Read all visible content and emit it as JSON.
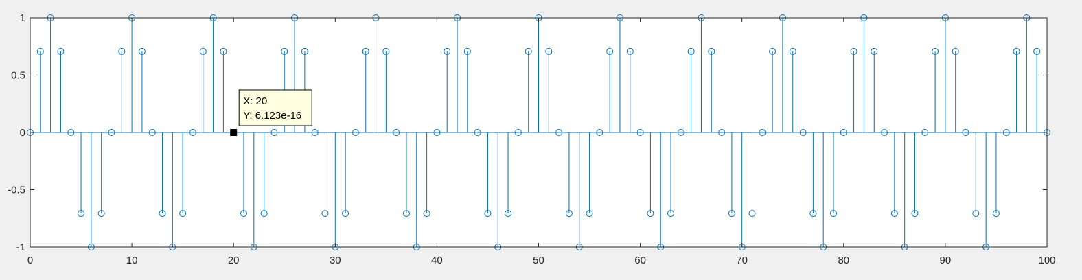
{
  "chart_data": {
    "type": "stem",
    "title": "",
    "xlabel": "",
    "ylabel": "",
    "xlim": [
      0,
      100
    ],
    "ylim": [
      -1,
      1
    ],
    "x_ticks": [
      0,
      10,
      20,
      30,
      40,
      50,
      60,
      70,
      80,
      90,
      100
    ],
    "y_ticks": [
      -1,
      -0.5,
      0,
      0.5,
      1
    ],
    "x_tick_labels": [
      "0",
      "10",
      "20",
      "30",
      "40",
      "50",
      "60",
      "70",
      "80",
      "90",
      "100"
    ],
    "y_tick_labels": [
      "-1",
      "-0.5",
      "0",
      "0.5",
      "1"
    ],
    "grid": false,
    "box": true,
    "marker": "circle-open",
    "series_color": "#0072bd",
    "axes_color": "#262626",
    "background_color": "#ffffff",
    "figure_color": "#f0f0f0",
    "x": [
      0,
      1,
      2,
      3,
      4,
      5,
      6,
      7,
      8,
      9,
      10,
      11,
      12,
      13,
      14,
      15,
      16,
      17,
      18,
      19,
      20,
      21,
      22,
      23,
      24,
      25,
      26,
      27,
      28,
      29,
      30,
      31,
      32,
      33,
      34,
      35,
      36,
      37,
      38,
      39,
      40,
      41,
      42,
      43,
      44,
      45,
      46,
      47,
      48,
      49,
      50,
      51,
      52,
      53,
      54,
      55,
      56,
      57,
      58,
      59,
      60,
      61,
      62,
      63,
      64,
      65,
      66,
      67,
      68,
      69,
      70,
      71,
      72,
      73,
      74,
      75,
      76,
      77,
      78,
      79,
      80,
      81,
      82,
      83,
      84,
      85,
      86,
      87,
      88,
      89,
      90,
      91,
      92,
      93,
      94,
      95,
      96,
      97,
      98,
      99,
      100
    ],
    "y": [
      0,
      0.7071,
      1,
      0.7071,
      0,
      -0.7071,
      -1,
      -0.7071,
      0,
      0.7071,
      1,
      0.7071,
      0,
      -0.7071,
      -1,
      -0.7071,
      0,
      0.7071,
      1,
      0.7071,
      0,
      -0.7071,
      -1,
      -0.7071,
      0,
      0.7071,
      1,
      0.7071,
      0,
      -0.7071,
      -1,
      -0.7071,
      0,
      0.7071,
      1,
      0.7071,
      0,
      -0.7071,
      -1,
      -0.7071,
      0,
      0.7071,
      1,
      0.7071,
      0,
      -0.7071,
      -1,
      -0.7071,
      0,
      0.7071,
      1,
      0.7071,
      0,
      -0.7071,
      -1,
      -0.7071,
      0,
      0.7071,
      1,
      0.7071,
      0,
      -0.7071,
      -1,
      -0.7071,
      0,
      0.7071,
      1,
      0.7071,
      0,
      -0.7071,
      -1,
      -0.7071,
      0,
      0.7071,
      1,
      0.7071,
      0,
      -0.7071,
      -1,
      -0.7071,
      0,
      0.7071,
      1,
      0.7071,
      0,
      -0.7071,
      -1,
      -0.7071,
      0,
      0.7071,
      1,
      0.7071,
      0,
      -0.7071,
      -1,
      -0.7071,
      0,
      0.7071,
      1,
      0.7071,
      0
    ],
    "datatip": {
      "point_x": 20,
      "point_y": 0,
      "x_text": "X: 20",
      "y_text": "Y: 6.123e-16",
      "box_color": "#ffffe1",
      "marker_color": "#000000"
    }
  }
}
